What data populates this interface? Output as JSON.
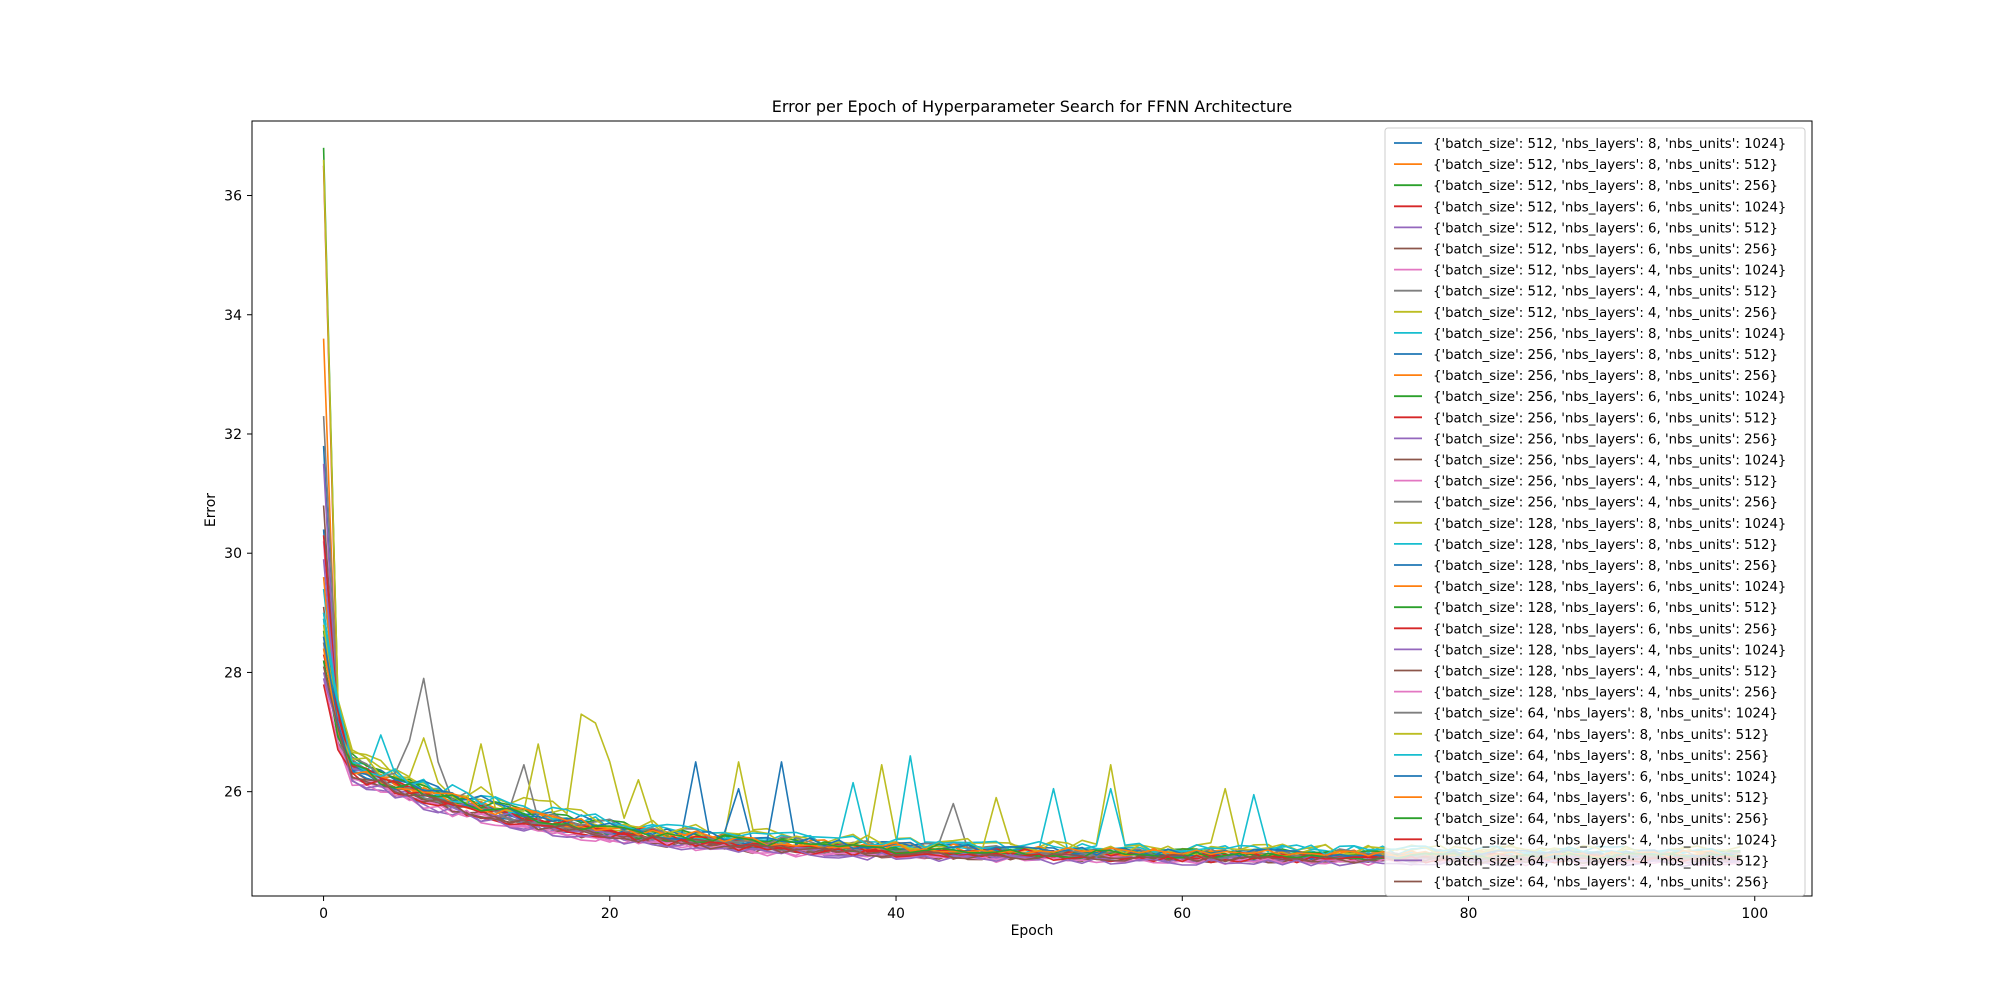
{
  "chart_data": {
    "type": "line",
    "title": "Error per Epoch of Hyperparameter Search for FFNN Architecture",
    "xlabel": "Epoch",
    "ylabel": "Error",
    "xlim": [
      -5,
      104
    ],
    "ylim": [
      24.25,
      37.25
    ],
    "xticks": [
      0,
      20,
      40,
      60,
      80,
      100
    ],
    "yticks": [
      26,
      28,
      30,
      32,
      34,
      36
    ],
    "grid": false,
    "legend_position": "upper right",
    "series": [
      {
        "name": "{'batch_size': 512, 'nbs_layers': 8, 'nbs_units': 1024}",
        "color": "#1f77b4",
        "start": 31.8,
        "floor": 24.9,
        "early": 26.5,
        "decay": 12,
        "noise": 0.08,
        "seed": 1
      },
      {
        "name": "{'batch_size': 512, 'nbs_layers': 8, 'nbs_units': 512}",
        "color": "#ff7f0e",
        "start": 33.6,
        "floor": 24.9,
        "early": 26.6,
        "decay": 12,
        "noise": 0.08,
        "seed": 2
      },
      {
        "name": "{'batch_size': 512, 'nbs_layers': 8, 'nbs_units': 256}",
        "color": "#2ca02c",
        "start": 36.8,
        "floor": 24.9,
        "early": 26.7,
        "decay": 12,
        "noise": 0.08,
        "seed": 3
      },
      {
        "name": "{'batch_size': 512, 'nbs_layers': 6, 'nbs_units': 1024}",
        "color": "#d62728",
        "start": 36.5,
        "floor": 24.9,
        "early": 26.6,
        "decay": 12,
        "noise": 0.08,
        "seed": 4
      },
      {
        "name": "{'batch_size': 512, 'nbs_layers': 6, 'nbs_units': 512}",
        "color": "#9467bd",
        "start": 31.5,
        "floor": 24.85,
        "early": 26.5,
        "decay": 12,
        "noise": 0.08,
        "seed": 5
      },
      {
        "name": "{'batch_size': 512, 'nbs_layers': 6, 'nbs_units': 256}",
        "color": "#8c564b",
        "start": 30.8,
        "floor": 24.9,
        "early": 26.5,
        "decay": 12,
        "noise": 0.08,
        "seed": 6
      },
      {
        "name": "{'batch_size': 512, 'nbs_layers': 4, 'nbs_units': 1024}",
        "color": "#e377c2",
        "start": 30.2,
        "floor": 24.85,
        "early": 26.4,
        "decay": 12,
        "noise": 0.08,
        "seed": 7
      },
      {
        "name": "{'batch_size': 512, 'nbs_layers': 4, 'nbs_units': 512}",
        "color": "#7f7f7f",
        "start": 32.3,
        "floor": 24.9,
        "early": 26.6,
        "decay": 12,
        "noise": 0.08,
        "seed": 8
      },
      {
        "name": "{'batch_size': 512, 'nbs_layers': 4, 'nbs_units': 256}",
        "color": "#bcbd22",
        "start": 36.6,
        "floor": 24.95,
        "early": 26.8,
        "decay": 12,
        "noise": 0.08,
        "seed": 9
      },
      {
        "name": "{'batch_size': 256, 'nbs_layers': 8, 'nbs_units': 1024}",
        "color": "#17becf",
        "start": 29.4,
        "floor": 24.95,
        "early": 26.6,
        "decay": 13,
        "noise": 0.1,
        "seed": 10
      },
      {
        "name": "{'batch_size': 256, 'nbs_layers': 8, 'nbs_units': 512}",
        "color": "#1f77b4",
        "start": 30.4,
        "floor": 24.9,
        "early": 26.5,
        "decay": 13,
        "noise": 0.09,
        "seed": 11
      },
      {
        "name": "{'batch_size': 256, 'nbs_layers': 8, 'nbs_units': 256}",
        "color": "#ff7f0e",
        "start": 29.6,
        "floor": 24.95,
        "early": 26.6,
        "decay": 13,
        "noise": 0.09,
        "seed": 12
      },
      {
        "name": "{'batch_size': 256, 'nbs_layers': 6, 'nbs_units': 1024}",
        "color": "#2ca02c",
        "start": 29.0,
        "floor": 24.9,
        "early": 26.5,
        "decay": 13,
        "noise": 0.09,
        "seed": 13
      },
      {
        "name": "{'batch_size': 256, 'nbs_layers': 6, 'nbs_units': 512}",
        "color": "#d62728",
        "start": 30.3,
        "floor": 24.9,
        "early": 26.5,
        "decay": 13,
        "noise": 0.09,
        "seed": 14
      },
      {
        "name": "{'batch_size': 256, 'nbs_layers': 6, 'nbs_units': 256}",
        "color": "#9467bd",
        "start": 29.9,
        "floor": 24.85,
        "early": 26.5,
        "decay": 13,
        "noise": 0.09,
        "seed": 15
      },
      {
        "name": "{'batch_size': 256, 'nbs_layers': 4, 'nbs_units': 1024}",
        "color": "#8c564b",
        "start": 29.1,
        "floor": 24.85,
        "early": 26.4,
        "decay": 12,
        "noise": 0.09,
        "seed": 16
      },
      {
        "name": "{'batch_size': 256, 'nbs_layers': 4, 'nbs_units': 512}",
        "color": "#e377c2",
        "start": 28.6,
        "floor": 24.85,
        "early": 26.4,
        "decay": 12,
        "noise": 0.09,
        "seed": 17
      },
      {
        "name": "{'batch_size': 256, 'nbs_layers': 4, 'nbs_units': 256}",
        "color": "#7f7f7f",
        "start": 28.9,
        "floor": 24.9,
        "early": 26.5,
        "decay": 12,
        "noise": 0.09,
        "seed": 18
      },
      {
        "name": "{'batch_size': 128, 'nbs_layers': 8, 'nbs_units': 1024}",
        "color": "#bcbd22",
        "start": 28.6,
        "floor": 25.0,
        "early": 26.7,
        "decay": 15,
        "noise": 0.18,
        "seed": 19,
        "spikes": [
          [
            18,
            27.3
          ],
          [
            19,
            27.15
          ],
          [
            20,
            26.5
          ],
          [
            22,
            26.2
          ],
          [
            29,
            26.5
          ],
          [
            39,
            26.45
          ],
          [
            55,
            26.45
          ],
          [
            63,
            26.05
          ]
        ]
      },
      {
        "name": "{'batch_size': 128, 'nbs_layers': 8, 'nbs_units': 512}",
        "color": "#17becf",
        "start": 28.9,
        "floor": 25.0,
        "early": 26.6,
        "decay": 14,
        "noise": 0.14,
        "seed": 20,
        "spikes": [
          [
            4,
            26.95
          ],
          [
            37,
            26.15
          ],
          [
            41,
            26.6
          ],
          [
            51,
            26.05
          ],
          [
            65,
            25.95
          ]
        ]
      },
      {
        "name": "{'batch_size': 128, 'nbs_layers': 8, 'nbs_units': 256}",
        "color": "#1f77b4",
        "start": 28.4,
        "floor": 24.95,
        "early": 26.6,
        "decay": 14,
        "noise": 0.13,
        "seed": 21,
        "spikes": [
          [
            26,
            26.5
          ],
          [
            32,
            26.5
          ],
          [
            29,
            26.05
          ]
        ]
      },
      {
        "name": "{'batch_size': 128, 'nbs_layers': 6, 'nbs_units': 1024}",
        "color": "#ff7f0e",
        "start": 28.5,
        "floor": 24.95,
        "early": 26.5,
        "decay": 14,
        "noise": 0.11,
        "seed": 22
      },
      {
        "name": "{'batch_size': 128, 'nbs_layers': 6, 'nbs_units': 512}",
        "color": "#2ca02c",
        "start": 28.7,
        "floor": 24.95,
        "early": 26.6,
        "decay": 14,
        "noise": 0.11,
        "seed": 23
      },
      {
        "name": "{'batch_size': 128, 'nbs_layers': 6, 'nbs_units': 256}",
        "color": "#d62728",
        "start": 28.3,
        "floor": 24.9,
        "early": 26.5,
        "decay": 14,
        "noise": 0.11,
        "seed": 24
      },
      {
        "name": "{'batch_size': 128, 'nbs_layers': 4, 'nbs_units': 1024}",
        "color": "#9467bd",
        "start": 28.0,
        "floor": 24.85,
        "early": 26.3,
        "decay": 13,
        "noise": 0.1,
        "seed": 25
      },
      {
        "name": "{'batch_size': 128, 'nbs_layers': 4, 'nbs_units': 512}",
        "color": "#8c564b",
        "start": 28.2,
        "floor": 24.85,
        "early": 26.4,
        "decay": 13,
        "noise": 0.1,
        "seed": 26
      },
      {
        "name": "{'batch_size': 128, 'nbs_layers': 4, 'nbs_units': 256}",
        "color": "#e377c2",
        "start": 27.9,
        "floor": 24.8,
        "early": 26.3,
        "decay": 13,
        "noise": 0.1,
        "seed": 27
      },
      {
        "name": "{'batch_size': 64, 'nbs_layers': 8, 'nbs_units': 1024}",
        "color": "#7f7f7f",
        "start": 28.5,
        "floor": 24.95,
        "early": 26.6,
        "decay": 14,
        "noise": 0.13,
        "seed": 28,
        "spikes": [
          [
            6,
            26.85
          ],
          [
            7,
            27.9
          ],
          [
            8,
            26.5
          ],
          [
            14,
            26.45
          ],
          [
            44,
            25.8
          ]
        ]
      },
      {
        "name": "{'batch_size': 64, 'nbs_layers': 8, 'nbs_units': 512}",
        "color": "#bcbd22",
        "start": 28.8,
        "floor": 25.0,
        "early": 26.6,
        "decay": 15,
        "noise": 0.16,
        "seed": 29,
        "spikes": [
          [
            7,
            26.9
          ],
          [
            11,
            26.8
          ],
          [
            15,
            26.8
          ],
          [
            47,
            25.9
          ]
        ]
      },
      {
        "name": "{'batch_size': 64, 'nbs_layers': 8, 'nbs_units': 256}",
        "color": "#17becf",
        "start": 29.0,
        "floor": 25.0,
        "early": 26.6,
        "decay": 15,
        "noise": 0.14,
        "seed": 30,
        "spikes": [
          [
            55,
            26.05
          ]
        ]
      },
      {
        "name": "{'batch_size': 64, 'nbs_layers': 6, 'nbs_units': 1024}",
        "color": "#1f77b4",
        "start": 28.6,
        "floor": 24.95,
        "early": 26.5,
        "decay": 14,
        "noise": 0.12,
        "seed": 31
      },
      {
        "name": "{'batch_size': 64, 'nbs_layers': 6, 'nbs_units': 512}",
        "color": "#ff7f0e",
        "start": 28.4,
        "floor": 24.95,
        "early": 26.5,
        "decay": 14,
        "noise": 0.11,
        "seed": 32
      },
      {
        "name": "{'batch_size': 64, 'nbs_layers': 6, 'nbs_units': 256}",
        "color": "#2ca02c",
        "start": 28.2,
        "floor": 24.9,
        "early": 26.5,
        "decay": 14,
        "noise": 0.11,
        "seed": 33
      },
      {
        "name": "{'batch_size': 64, 'nbs_layers': 4, 'nbs_units': 1024}",
        "color": "#d62728",
        "start": 27.8,
        "floor": 24.85,
        "early": 26.4,
        "decay": 13,
        "noise": 0.1,
        "seed": 34
      },
      {
        "name": "{'batch_size': 64, 'nbs_layers': 4, 'nbs_units': 512}",
        "color": "#9467bd",
        "start": 27.9,
        "floor": 24.8,
        "early": 26.3,
        "decay": 13,
        "noise": 0.1,
        "seed": 35
      },
      {
        "name": "{'batch_size': 64, 'nbs_layers': 4, 'nbs_units': 256}",
        "color": "#8c564b",
        "start": 28.1,
        "floor": 24.85,
        "early": 26.4,
        "decay": 13,
        "noise": 0.1,
        "seed": 36
      }
    ]
  }
}
